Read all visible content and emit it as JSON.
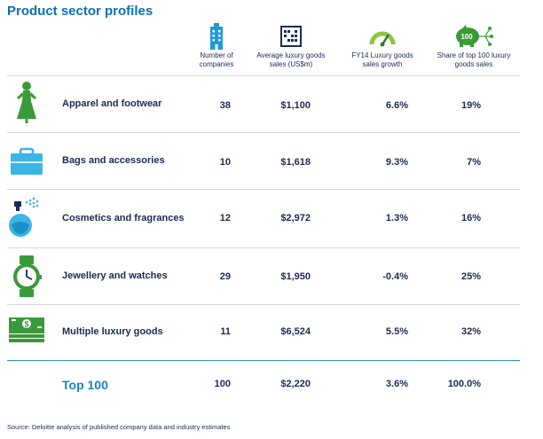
{
  "title": "Product sector profiles",
  "headers": [
    {
      "label": "Number of companies",
      "icon": "building-icon"
    },
    {
      "label": "Average luxury goods sales (US$m)",
      "icon": "abacus-icon"
    },
    {
      "label": "FY14 Luxury goods sales growth",
      "icon": "speedometer-icon"
    },
    {
      "label": "Share of top 100 luxury goods sales",
      "icon": "piggy-bank-100-icon",
      "icon_text": "100"
    }
  ],
  "rows": [
    {
      "sector": "Apparel and footwear",
      "icon": "dress-icon",
      "companies": "38",
      "avg_sales": "$1,100",
      "growth": "6.6%",
      "share": "19%"
    },
    {
      "sector": "Bags and accessories",
      "icon": "briefcase-icon",
      "companies": "10",
      "avg_sales": "$1,618",
      "growth": "9.3%",
      "share": "7%"
    },
    {
      "sector": "Cosmetics and fragrances",
      "icon": "perfume-bottle-icon",
      "companies": "12",
      "avg_sales": "$2,972",
      "growth": "1.3%",
      "share": "16%"
    },
    {
      "sector": "Jewellery and watches",
      "icon": "watch-icon",
      "companies": "29",
      "avg_sales": "$1,950",
      "growth": "-0.4%",
      "share": "25%"
    },
    {
      "sector": "Multiple luxury goods",
      "icon": "money-stack-icon",
      "companies": "11",
      "avg_sales": "$6,524",
      "growth": "5.5%",
      "share": "32%",
      "icon_text": "$"
    }
  ],
  "total": {
    "sector": "Top 100",
    "companies": "100",
    "avg_sales": "$2,220",
    "growth": "3.6%",
    "share": "100.0%"
  },
  "source": "Source: Deloitte analysis of published company data and industry estimates",
  "colors": {
    "title": "#0a6fb8",
    "text": "#1b2a55",
    "accent_blue": "#2c95c8",
    "icon_green": "#3a9a3a",
    "icon_lightblue": "#3cb4e6"
  }
}
